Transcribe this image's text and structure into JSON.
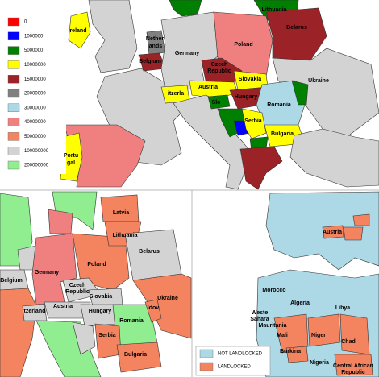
{
  "top_map": {
    "legend": [
      {
        "label": "0",
        "color": "#ff0000"
      },
      {
        "label": "1000000",
        "color": "#0000ff"
      },
      {
        "label": "5000000",
        "color": "#008000"
      },
      {
        "label": "10000000",
        "color": "#ffff00"
      },
      {
        "label": "15000000",
        "color": "#9b2226"
      },
      {
        "label": "20000000",
        "color": "#808080"
      },
      {
        "label": "30000000",
        "color": "#add8e6"
      },
      {
        "label": "40000000",
        "color": "#f08080"
      },
      {
        "label": "50000000",
        "color": "#f4845f"
      },
      {
        "label": "100000000",
        "color": "#d3d3d3"
      },
      {
        "label": "200000000",
        "color": "#90ee90"
      }
    ],
    "labels": [
      "Ireland",
      "Nether",
      "lands",
      "Belgium",
      "Germany",
      "Poland",
      "Czech",
      "Republic",
      "Slovakia",
      "Austria",
      "itzerla",
      "Hungary",
      "Romania",
      "Ukraine",
      "Belarus",
      "Lithuania",
      "Slo",
      "Serbia",
      "Bulgaria",
      "Portu",
      "gal"
    ]
  },
  "bottom_left_map": {
    "labels": [
      "Latvia",
      "Lithuania",
      "Belarus",
      "Poland",
      "Germany",
      "Belgium",
      "Czech",
      "Republic",
      "Slovakia",
      "Austria",
      "itzerland",
      "Hungary",
      "Ukraine",
      "Romania",
      "Serbia",
      "Bulgaria",
      "ldov"
    ]
  },
  "bottom_right_map": {
    "legend": [
      {
        "label": "NOT LANDLOCKED",
        "color": "#add8e6"
      },
      {
        "label": "LANDLOCKED",
        "color": "#f4845f"
      }
    ],
    "labels": [
      "Austria",
      "Morocco",
      "Algeria",
      "Libya",
      "Weste",
      "Sahara",
      "Mauritania",
      "Mali",
      "Niger",
      "Chad",
      "Burkina",
      "Nigeria",
      "Central African",
      "Republic"
    ]
  }
}
